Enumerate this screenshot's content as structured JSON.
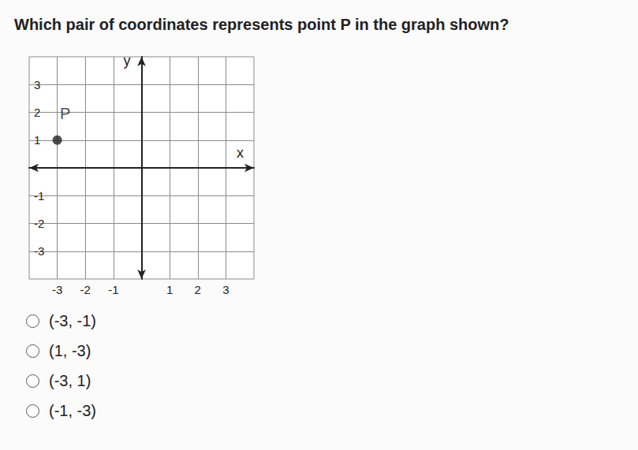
{
  "question": "Which pair of coordinates represents point P in the graph shown?",
  "chart_data": {
    "type": "scatter",
    "x_label": "x",
    "y_label": "y",
    "x": [
      -3
    ],
    "values": [
      1
    ],
    "point_labels": [
      "P"
    ],
    "color": "#222222",
    "xlim": [
      -4,
      4
    ],
    "ylim": [
      -4,
      4
    ],
    "xticks": [
      -3,
      -2,
      -1,
      1,
      2,
      3
    ],
    "yticks": [
      -3,
      -2,
      -1,
      1,
      2,
      3
    ],
    "grid": true
  },
  "options": [
    "(-3, -1)",
    "(1, -3)",
    "(-3, 1)",
    "(-1, -3)"
  ]
}
